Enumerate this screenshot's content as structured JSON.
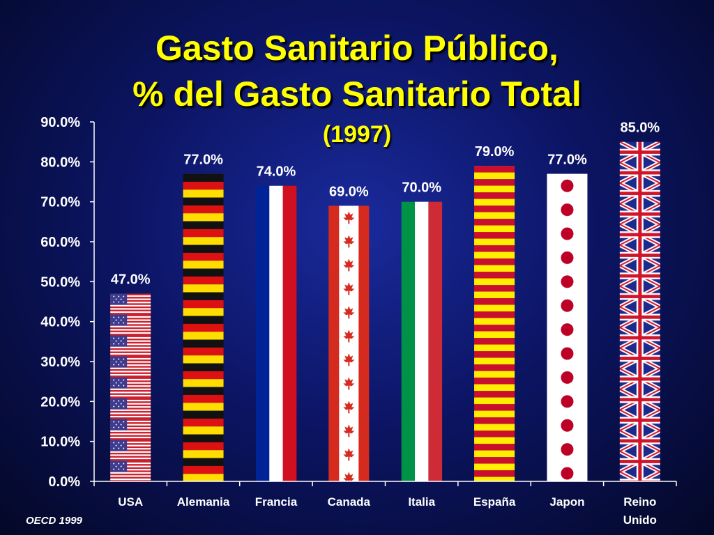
{
  "slide": {
    "title_line1": "Gasto Sanitario Público,",
    "title_line2": "% del Gasto Sanitario Total",
    "subtitle": "(1997)",
    "source": "OECD 1999"
  },
  "colors": {
    "title": "#ffff00",
    "text": "#ffffff",
    "axis": "#ffffff"
  },
  "chart_data": {
    "type": "bar",
    "title": "Gasto Sanitario Público, % del Gasto Sanitario Total",
    "subtitle": "(1997)",
    "categories": [
      "USA",
      "Alemania",
      "Francia",
      "Canada",
      "Italia",
      "España",
      "Japon",
      "Reino Unido"
    ],
    "category_lines": [
      [
        "USA"
      ],
      [
        "Alemania"
      ],
      [
        "Francia"
      ],
      [
        "Canada"
      ],
      [
        "Italia"
      ],
      [
        "España"
      ],
      [
        "Japon"
      ],
      [
        "Reino",
        "Unido"
      ]
    ],
    "values": [
      47.0,
      77.0,
      74.0,
      69.0,
      70.0,
      79.0,
      77.0,
      85.0
    ],
    "value_labels": [
      "47.0%",
      "77.0%",
      "74.0%",
      "69.0%",
      "70.0%",
      "79.0%",
      "77.0%",
      "85.0%"
    ],
    "bar_patterns": [
      "usa-flag",
      "germany-flag",
      "france-flag",
      "canada-flag",
      "italy-flag",
      "spain-flag",
      "japan-flag",
      "uk-flag"
    ],
    "ylim": [
      0,
      90
    ],
    "yticks": [
      0,
      10,
      20,
      30,
      40,
      50,
      60,
      70,
      80,
      90
    ],
    "ytick_labels": [
      "0.0%",
      "10.0%",
      "20.0%",
      "30.0%",
      "40.0%",
      "50.0%",
      "60.0%",
      "70.0%",
      "80.0%",
      "90.0%"
    ],
    "xlabel": "",
    "ylabel": "",
    "legend": "none",
    "grid": false
  }
}
